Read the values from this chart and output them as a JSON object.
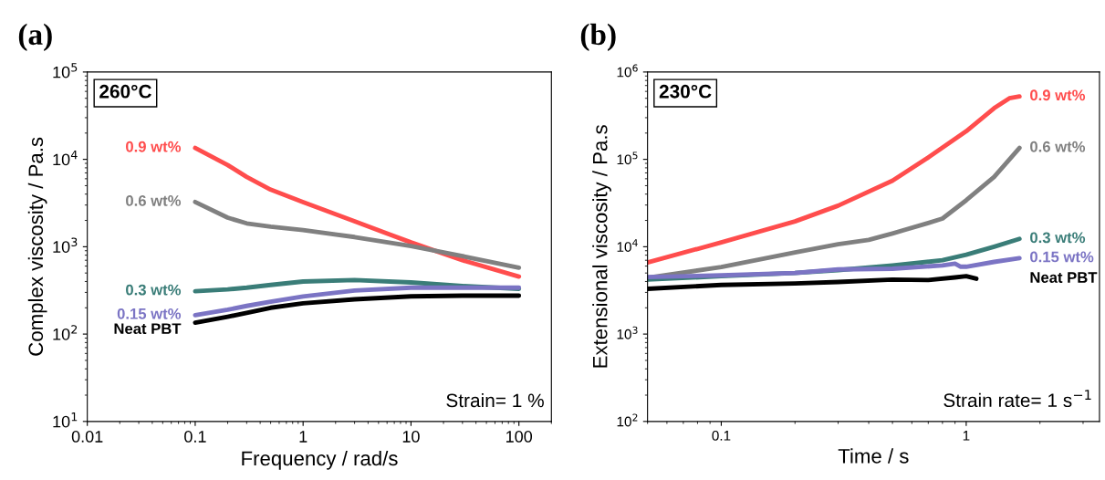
{
  "chart_data": [
    {
      "type": "line",
      "title": "(a)",
      "xlabel": "Frequency / rad/s",
      "ylabel": "Complex viscosity / Pa.s",
      "log": "xy",
      "grid": false,
      "line_style": "solid",
      "xlim": [
        0.01,
        200
      ],
      "ylim": [
        10,
        100000
      ],
      "xticks": [
        0.01,
        0.1,
        1,
        10,
        100
      ],
      "yticks": [
        {
          "value": 10,
          "label": "10$^{1}$"
        },
        {
          "value": 100,
          "label": "10$^{2}$"
        },
        {
          "value": 1000,
          "label": "10$^{3}$"
        },
        {
          "value": 10000,
          "label": "10$^{4}$"
        },
        {
          "value": 100000,
          "label": "10$^{5}$"
        }
      ],
      "annotations": [
        "260°C",
        "Strain= 1 %"
      ],
      "x": [
        0.1,
        0.2,
        0.3,
        0.5,
        1,
        3,
        10,
        30,
        100
      ],
      "series": [
        {
          "name": "0.9 wt%",
          "color": "#ff4d4d",
          "values": [
            13500,
            8600,
            6300,
            4500,
            3240,
            1950,
            1120,
            700,
            455
          ]
        },
        {
          "name": "0.6 wt%",
          "color": "#808080",
          "values": [
            3250,
            2150,
            1850,
            1700,
            1550,
            1290,
            1020,
            780,
            575
          ]
        },
        {
          "name": "0.3 wt%",
          "color": "#3a7d78",
          "values": [
            310,
            325,
            340,
            365,
            400,
            415,
            390,
            355,
            330
          ]
        },
        {
          "name": "0.15 wt%",
          "color": "#7b74c4",
          "values": [
            165,
            190,
            210,
            235,
            270,
            315,
            340,
            340,
            340
          ]
        },
        {
          "name": "Neat PBT",
          "color": "#000000",
          "values": [
            135,
            158,
            175,
            200,
            225,
            250,
            270,
            275,
            275
          ]
        }
      ]
    },
    {
      "type": "line",
      "title": "(b)",
      "xlabel": "Time / s",
      "ylabel": "Extensional viscosity / Pa.s",
      "log": "xy",
      "grid": false,
      "line_style": "solid",
      "xlim": [
        0.05,
        3.5
      ],
      "ylim": [
        100,
        1000000
      ],
      "xticks": [
        0.1,
        1
      ],
      "yticks": [
        {
          "value": 100,
          "label": "10$^{2}$"
        },
        {
          "value": 1000,
          "label": "10$^{3}$"
        },
        {
          "value": 10000,
          "label": "10$^{4}$"
        },
        {
          "value": 100000,
          "label": "10$^{5}$"
        },
        {
          "value": 1000000,
          "label": "10$^{6}$"
        }
      ],
      "annotations": [
        "230°C",
        "Strain rate= 1 s$^{−1}$"
      ],
      "series": [
        {
          "name": "0.9 wt%",
          "color": "#ff4d4d",
          "x": [
            0.05,
            0.1,
            0.2,
            0.3,
            0.5,
            0.7,
            1,
            1.3,
            1.5,
            1.65
          ],
          "values": [
            6600,
            11200,
            19500,
            29500,
            57000,
            105000,
            210000,
            385000,
            500000,
            525000
          ]
        },
        {
          "name": "0.6 wt%",
          "color": "#808080",
          "x": [
            0.05,
            0.1,
            0.2,
            0.3,
            0.4,
            0.5,
            0.7,
            0.8,
            1,
            1.3,
            1.65
          ],
          "values": [
            4400,
            5850,
            8600,
            10700,
            12000,
            14200,
            18700,
            21000,
            34000,
            63000,
            135000
          ]
        },
        {
          "name": "0.3 wt%",
          "color": "#3a7d78",
          "x": [
            0.05,
            0.1,
            0.2,
            0.3,
            0.5,
            0.8,
            1,
            1.3,
            1.65
          ],
          "values": [
            4200,
            4600,
            5000,
            5400,
            6100,
            7000,
            8100,
            10000,
            12300
          ]
        },
        {
          "name": "0.15 wt%",
          "color": "#7b74c4",
          "x": [
            0.05,
            0.1,
            0.2,
            0.3,
            0.5,
            0.8,
            0.9,
            0.95,
            1,
            1.3,
            1.65
          ],
          "values": [
            4500,
            4700,
            5000,
            5500,
            5600,
            6100,
            6400,
            5900,
            5900,
            6700,
            7400
          ]
        },
        {
          "name": "Neat PBT",
          "color": "#000000",
          "x": [
            0.05,
            0.1,
            0.2,
            0.3,
            0.5,
            0.7,
            0.9,
            1.0,
            1.1
          ],
          "values": [
            3300,
            3650,
            3800,
            3950,
            4200,
            4150,
            4450,
            4600,
            4300
          ]
        }
      ]
    }
  ]
}
